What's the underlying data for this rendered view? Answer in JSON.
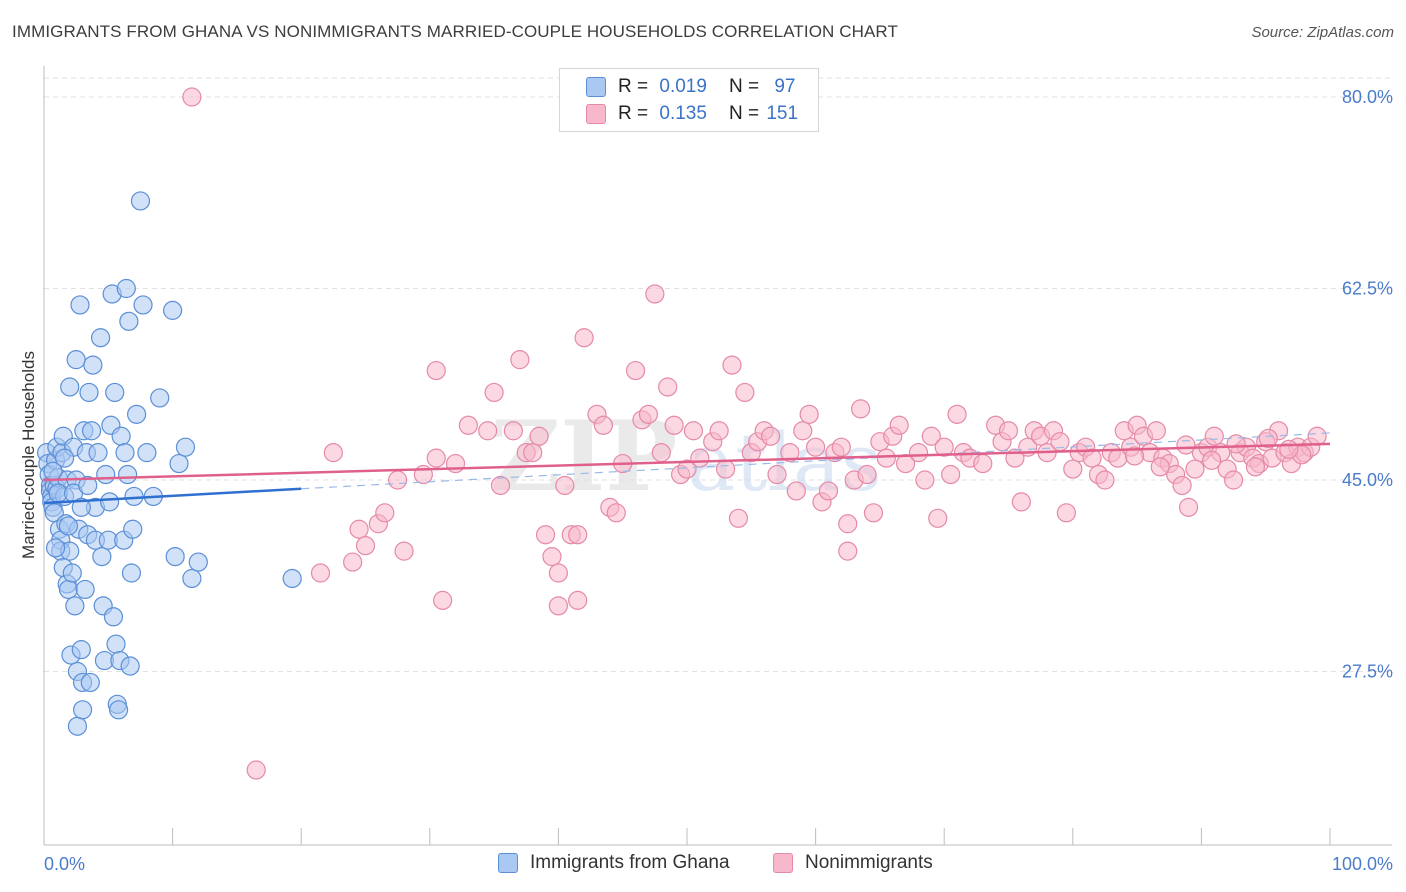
{
  "title": "IMMIGRANTS FROM GHANA VS NONIMMIGRANTS MARRIED-COUPLE HOUSEHOLDS CORRELATION CHART",
  "source": "Source: ZipAtlas.com",
  "watermark": "ZIPatlas",
  "legend": {
    "blue": {
      "r_label": "R =",
      "r_value": "0.019",
      "n_label": "N =",
      "n_value": "97"
    },
    "pink": {
      "r_label": "R =",
      "r_value": "0.135",
      "n_label": "N =",
      "n_value": "151"
    }
  },
  "colors": {
    "blue_fill": "#a9c8f2",
    "blue_stroke": "#5b8fd6",
    "blue_line": "#2f6fcf",
    "pink_fill": "#f7b8cb",
    "pink_stroke": "#e58aa7",
    "pink_line": "#e0608c",
    "grid": "#e2e2e2",
    "axis_text": "#4a7cc9"
  },
  "chart_data": {
    "type": "scatter",
    "title": "IMMIGRANTS FROM GHANA VS NONIMMIGRANTS MARRIED-COUPLE HOUSEHOLDS CORRELATION CHART",
    "xlabel": "",
    "ylabel": "Married-couple Households",
    "xlim": [
      0,
      100
    ],
    "ylim": [
      10,
      83
    ],
    "x_tick_labels": [
      "0.0%",
      "100.0%"
    ],
    "y_ticks": [
      27.5,
      45.0,
      62.5,
      80.0
    ],
    "y_tick_labels": [
      "27.5%",
      "45.0%",
      "62.5%",
      "80.0%"
    ],
    "legend_position": "top-center",
    "series": [
      {
        "name": "Immigrants from Ghana",
        "color": "blue",
        "R": 0.019,
        "N": 97,
        "trend": {
          "x": [
            0,
            20
          ],
          "y": [
            42.9,
            44.2
          ],
          "dashed_to_x": 100,
          "dashed_to_y": 49.3
        },
        "points": [
          [
            0.2,
            47.5
          ],
          [
            0.3,
            46.5
          ],
          [
            0.4,
            45.5
          ],
          [
            0.5,
            44.5
          ],
          [
            0.5,
            44.0
          ],
          [
            0.6,
            43.5
          ],
          [
            0.6,
            43.0
          ],
          [
            0.7,
            42.5
          ],
          [
            0.8,
            42.0
          ],
          [
            0.8,
            44.5
          ],
          [
            0.9,
            46.8
          ],
          [
            1.0,
            48.0
          ],
          [
            1.0,
            44.2
          ],
          [
            1.1,
            45.2
          ],
          [
            1.2,
            40.5
          ],
          [
            1.3,
            39.5
          ],
          [
            1.3,
            38.5
          ],
          [
            1.4,
            47.5
          ],
          [
            1.5,
            49.0
          ],
          [
            1.5,
            37.0
          ],
          [
            1.6,
            43.5
          ],
          [
            1.7,
            41.0
          ],
          [
            1.8,
            45.0
          ],
          [
            1.8,
            35.5
          ],
          [
            1.9,
            35.0
          ],
          [
            2.0,
            53.5
          ],
          [
            2.0,
            38.5
          ],
          [
            2.1,
            29.0
          ],
          [
            2.2,
            36.5
          ],
          [
            2.3,
            48.0
          ],
          [
            2.4,
            33.5
          ],
          [
            2.5,
            56.0
          ],
          [
            2.5,
            45.0
          ],
          [
            2.6,
            27.5
          ],
          [
            2.6,
            22.5
          ],
          [
            2.7,
            40.5
          ],
          [
            2.8,
            61.0
          ],
          [
            2.9,
            29.5
          ],
          [
            3.0,
            26.5
          ],
          [
            3.0,
            24.0
          ],
          [
            3.1,
            49.5
          ],
          [
            3.2,
            35.0
          ],
          [
            3.3,
            47.5
          ],
          [
            3.4,
            40.0
          ],
          [
            3.5,
            53.0
          ],
          [
            3.6,
            26.5
          ],
          [
            3.7,
            49.5
          ],
          [
            3.8,
            55.5
          ],
          [
            4.0,
            42.5
          ],
          [
            4.0,
            39.5
          ],
          [
            4.2,
            47.5
          ],
          [
            4.4,
            58.0
          ],
          [
            4.5,
            38.0
          ],
          [
            4.6,
            33.5
          ],
          [
            4.7,
            28.5
          ],
          [
            4.8,
            45.5
          ],
          [
            5.0,
            39.5
          ],
          [
            5.1,
            43.0
          ],
          [
            5.2,
            50.0
          ],
          [
            5.3,
            62.0
          ],
          [
            5.4,
            32.5
          ],
          [
            5.5,
            53.0
          ],
          [
            5.6,
            30.0
          ],
          [
            5.7,
            24.5
          ],
          [
            5.8,
            24.0
          ],
          [
            5.9,
            28.5
          ],
          [
            6.0,
            49.0
          ],
          [
            6.2,
            39.5
          ],
          [
            6.3,
            47.5
          ],
          [
            6.4,
            62.5
          ],
          [
            6.5,
            45.5
          ],
          [
            6.6,
            59.5
          ],
          [
            6.7,
            28.0
          ],
          [
            6.8,
            36.5
          ],
          [
            6.9,
            40.5
          ],
          [
            7.0,
            43.5
          ],
          [
            7.2,
            51.0
          ],
          [
            7.5,
            70.5
          ],
          [
            7.7,
            61.0
          ],
          [
            8.0,
            47.5
          ],
          [
            8.5,
            43.5
          ],
          [
            9.0,
            52.5
          ],
          [
            10.0,
            60.5
          ],
          [
            10.2,
            38.0
          ],
          [
            10.5,
            46.5
          ],
          [
            11.0,
            48.0
          ],
          [
            11.5,
            36.0
          ],
          [
            12.0,
            37.5
          ],
          [
            1.1,
            43.8
          ],
          [
            0.7,
            45.8
          ],
          [
            1.6,
            47.0
          ],
          [
            2.3,
            43.8
          ],
          [
            2.9,
            42.5
          ],
          [
            3.4,
            44.5
          ],
          [
            1.9,
            40.8
          ],
          [
            0.9,
            38.8
          ],
          [
            19.3,
            36.0
          ]
        ]
      },
      {
        "name": "Nonimmigrants",
        "color": "pink",
        "R": 0.135,
        "N": 151,
        "trend": {
          "x": [
            0,
            100
          ],
          "y": [
            45.0,
            48.3
          ]
        },
        "points": [
          [
            11.5,
            80.0
          ],
          [
            16.5,
            18.5
          ],
          [
            21.5,
            36.5
          ],
          [
            22.5,
            47.5
          ],
          [
            24.0,
            37.5
          ],
          [
            24.5,
            40.5
          ],
          [
            25.0,
            39.0
          ],
          [
            26.0,
            41.0
          ],
          [
            26.5,
            42.0
          ],
          [
            27.5,
            45.0
          ],
          [
            28.0,
            38.5
          ],
          [
            29.5,
            45.5
          ],
          [
            30.5,
            47.0
          ],
          [
            30.5,
            55.0
          ],
          [
            31.0,
            34.0
          ],
          [
            32.0,
            46.5
          ],
          [
            33.0,
            50.0
          ],
          [
            34.5,
            49.5
          ],
          [
            35.0,
            53.0
          ],
          [
            35.5,
            44.5
          ],
          [
            36.5,
            49.5
          ],
          [
            37.0,
            56.0
          ],
          [
            37.5,
            47.5
          ],
          [
            38.0,
            47.5
          ],
          [
            38.5,
            49.0
          ],
          [
            39.0,
            40.0
          ],
          [
            39.5,
            38.0
          ],
          [
            40.0,
            36.5
          ],
          [
            40.5,
            44.5
          ],
          [
            40.0,
            33.5
          ],
          [
            41.0,
            40.0
          ],
          [
            41.5,
            34.0
          ],
          [
            41.5,
            40.0
          ],
          [
            42.0,
            58.0
          ],
          [
            43.0,
            51.0
          ],
          [
            43.5,
            50.0
          ],
          [
            44.0,
            42.5
          ],
          [
            44.5,
            42.0
          ],
          [
            45.0,
            46.5
          ],
          [
            46.0,
            55.0
          ],
          [
            46.5,
            50.5
          ],
          [
            47.0,
            51.0
          ],
          [
            47.5,
            62.0
          ],
          [
            48.0,
            47.5
          ],
          [
            48.5,
            53.5
          ],
          [
            49.0,
            50.0
          ],
          [
            49.5,
            45.5
          ],
          [
            50.0,
            46.0
          ],
          [
            50.5,
            49.5
          ],
          [
            51.0,
            47.0
          ],
          [
            52.0,
            48.5
          ],
          [
            52.5,
            49.5
          ],
          [
            53.0,
            46.0
          ],
          [
            53.5,
            55.5
          ],
          [
            54.0,
            41.5
          ],
          [
            54.5,
            53.0
          ],
          [
            55.0,
            47.5
          ],
          [
            55.5,
            48.5
          ],
          [
            56.0,
            49.5
          ],
          [
            56.5,
            49.0
          ],
          [
            57.0,
            45.5
          ],
          [
            58.0,
            47.5
          ],
          [
            58.5,
            44.0
          ],
          [
            59.0,
            49.5
          ],
          [
            59.5,
            51.0
          ],
          [
            60.0,
            48.0
          ],
          [
            60.5,
            43.0
          ],
          [
            61.0,
            44.0
          ],
          [
            61.5,
            47.5
          ],
          [
            62.0,
            48.0
          ],
          [
            62.5,
            41.0
          ],
          [
            62.5,
            38.5
          ],
          [
            63.0,
            45.0
          ],
          [
            63.5,
            51.5
          ],
          [
            64.0,
            45.5
          ],
          [
            64.5,
            42.0
          ],
          [
            65.0,
            48.5
          ],
          [
            65.5,
            47.0
          ],
          [
            66.0,
            49.0
          ],
          [
            66.5,
            50.0
          ],
          [
            67.0,
            46.5
          ],
          [
            68.0,
            47.5
          ],
          [
            68.5,
            45.0
          ],
          [
            69.0,
            49.0
          ],
          [
            69.5,
            41.5
          ],
          [
            70.0,
            48.0
          ],
          [
            70.5,
            45.5
          ],
          [
            71.0,
            51.0
          ],
          [
            71.5,
            47.5
          ],
          [
            72.0,
            47.0
          ],
          [
            73.0,
            46.5
          ],
          [
            74.0,
            50.0
          ],
          [
            74.5,
            48.5
          ],
          [
            75.0,
            49.5
          ],
          [
            75.5,
            47.0
          ],
          [
            76.0,
            43.0
          ],
          [
            76.5,
            48.0
          ],
          [
            77.0,
            49.5
          ],
          [
            77.5,
            49.0
          ],
          [
            78.0,
            47.5
          ],
          [
            78.5,
            49.5
          ],
          [
            79.0,
            48.5
          ],
          [
            79.5,
            42.0
          ],
          [
            80.0,
            46.0
          ],
          [
            80.5,
            47.5
          ],
          [
            81.0,
            48.0
          ],
          [
            81.5,
            47.0
          ],
          [
            82.0,
            45.5
          ],
          [
            82.5,
            45.0
          ],
          [
            83.0,
            47.5
          ],
          [
            83.5,
            47.0
          ],
          [
            84.0,
            49.5
          ],
          [
            84.5,
            48.0
          ],
          [
            85.0,
            50.0
          ],
          [
            85.5,
            49.0
          ],
          [
            86.0,
            47.5
          ],
          [
            86.5,
            49.5
          ],
          [
            87.0,
            47.0
          ],
          [
            87.5,
            46.5
          ],
          [
            88.0,
            45.5
          ],
          [
            88.5,
            44.5
          ],
          [
            89.0,
            42.5
          ],
          [
            89.5,
            46.0
          ],
          [
            90.0,
            47.5
          ],
          [
            90.5,
            48.0
          ],
          [
            91.0,
            49.0
          ],
          [
            91.5,
            47.5
          ],
          [
            92.0,
            46.0
          ],
          [
            92.5,
            45.0
          ],
          [
            93.0,
            47.5
          ],
          [
            93.5,
            48.0
          ],
          [
            94.0,
            47.0
          ],
          [
            94.5,
            46.5
          ],
          [
            95.0,
            48.5
          ],
          [
            95.5,
            47.0
          ],
          [
            96.0,
            49.5
          ],
          [
            96.5,
            47.5
          ],
          [
            97.0,
            46.5
          ],
          [
            97.5,
            48.0
          ],
          [
            98.0,
            47.5
          ],
          [
            98.5,
            48.0
          ],
          [
            99.0,
            49.0
          ],
          [
            95.2,
            48.8
          ],
          [
            97.8,
            47.3
          ],
          [
            94.2,
            46.2
          ],
          [
            96.8,
            47.8
          ],
          [
            92.7,
            48.3
          ],
          [
            90.8,
            46.8
          ],
          [
            88.8,
            48.2
          ],
          [
            86.8,
            46.2
          ],
          [
            84.8,
            47.2
          ]
        ]
      }
    ]
  }
}
